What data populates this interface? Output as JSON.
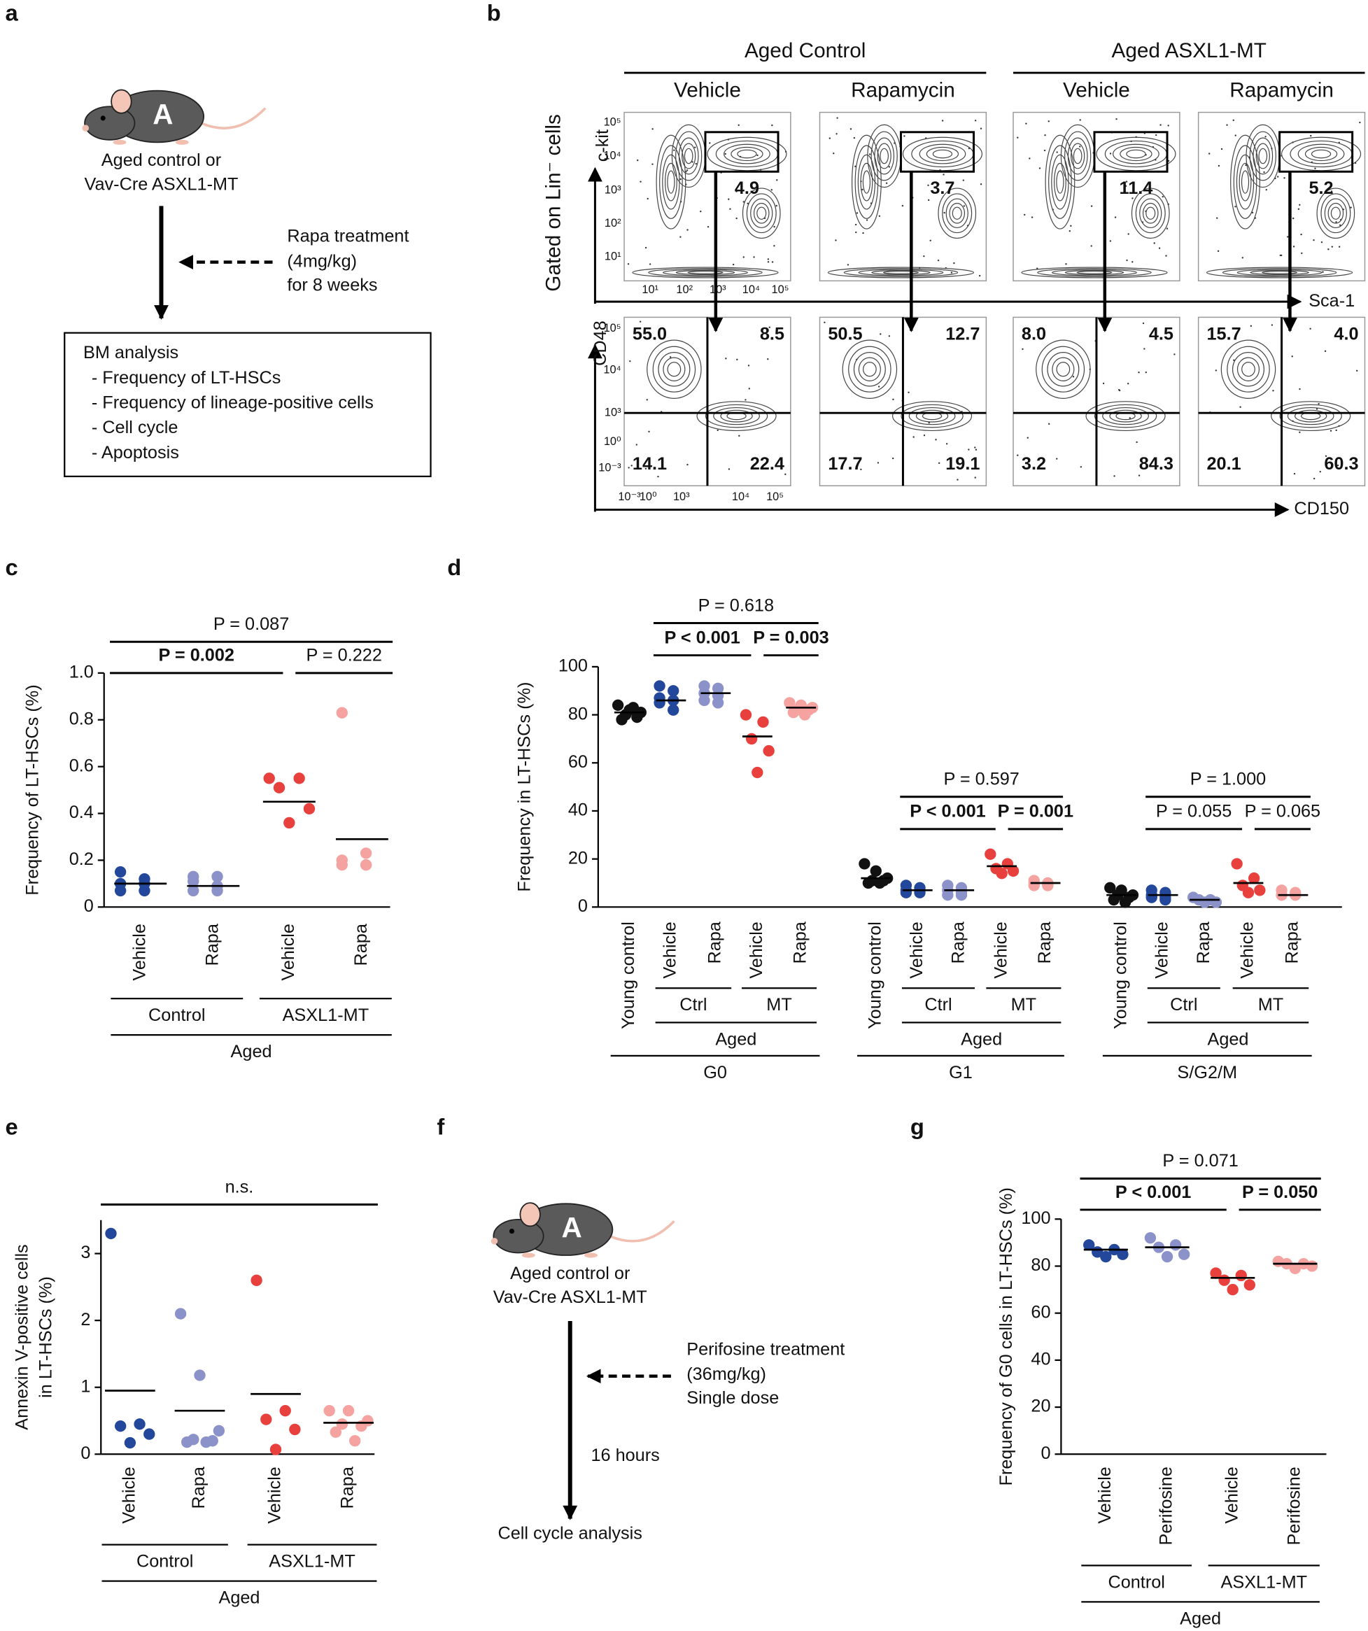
{
  "panel_labels": [
    "a",
    "b",
    "c",
    "d",
    "e",
    "f",
    "g"
  ],
  "panel_a": {
    "mouse_letter": "A",
    "subject": [
      "Aged control or",
      "Vav-Cre ASXL1-MT"
    ],
    "treatment": [
      "Rapa treatment",
      "(4mg/kg)",
      "for 8 weeks"
    ],
    "analysis": [
      "BM analysis",
      "- Frequency of LT-HSCs",
      "- Frequency of lineage-positive cells",
      "- Cell cycle",
      "- Apoptosis"
    ]
  },
  "panel_b": {
    "conditions": [
      {
        "label": "Aged Control",
        "treatments": [
          "Vehicle",
          "Rapamycin"
        ]
      },
      {
        "label": "Aged ASXL1-MT",
        "treatments": [
          "Vehicle",
          "Rapamycin"
        ]
      }
    ],
    "gate_label": "Gated on Lin⁻ cells",
    "top_y_axis": "c-kit",
    "top_x_axis": "Sca-1",
    "bottom_y_axis": "CD48",
    "bottom_x_axis": "CD150",
    "top_yticks": [
      "10⁵",
      "10⁴",
      "10³",
      "10²",
      "10¹"
    ],
    "top_xticks": [
      "10¹",
      "10²",
      "10³",
      "10⁴",
      "10⁵"
    ],
    "bottom_yticks": [
      "10⁵",
      "10⁴",
      "10³",
      "10⁰",
      "10⁻³"
    ],
    "bottom_xticks": [
      "10⁻³",
      "10⁰",
      "10³",
      "10⁴",
      "10⁵"
    ],
    "gate_percent": [
      "4.9",
      "3.7",
      "11.4",
      "5.2"
    ],
    "quadrants": [
      [
        "55.0",
        "8.5",
        "14.1",
        "22.4"
      ],
      [
        "50.5",
        "12.7",
        "17.7",
        "19.1"
      ],
      [
        "8.0",
        "4.5",
        "3.2",
        "84.3"
      ],
      [
        "15.7",
        "4.0",
        "20.1",
        "60.3"
      ]
    ]
  },
  "panel_f": {
    "mouse_letter": "A",
    "subject": [
      "Aged control or",
      "Vav-Cre ASXL1-MT"
    ],
    "treatment": [
      "Perifosine treatment",
      "(36mg/kg)",
      "Single dose"
    ],
    "interval": "16 hours",
    "endpoint": "Cell cycle analysis"
  },
  "chart_data": [
    {
      "type": "strip",
      "ylabel": "Frequency of LT-HSCs (%)",
      "categories": [
        "Vehicle",
        "Rapa",
        "Vehicle",
        "Rapa"
      ],
      "colors": [
        "#23479b",
        "#8b92c9",
        "#e8403c",
        "#f4a3a0"
      ],
      "subgroups": [
        {
          "label": "Control",
          "span": [
            0,
            1
          ]
        },
        {
          "label": "ASXL1-MT",
          "span": [
            2,
            3
          ]
        }
      ],
      "group": {
        "label": "Aged",
        "span": [
          0,
          3
        ]
      },
      "ylim": [
        0,
        1
      ],
      "yticks": [
        0,
        0.2,
        0.4,
        0.6,
        0.8,
        {
          "value": 1,
          "label": "1.0"
        }
      ],
      "panels": [
        {
          "points": [
            [
              0.15,
              0.12,
              0.1,
              0.1,
              0.07,
              0.07
            ],
            [
              0.13,
              0.13,
              0.11,
              0.09,
              0.07,
              0.07
            ],
            [
              0.55,
              0.55,
              0.51,
              0.42,
              0.36
            ],
            [
              0.83,
              0.23,
              0.2,
              0.18,
              0.18,
              0.18
            ]
          ],
          "means": [
            0.1,
            0.09,
            0.45,
            0.29
          ],
          "stats": [
            {
              "text": "P = 0.087",
              "span": [
                0,
                3
              ],
              "bold": false
            },
            {
              "text": "P = 0.002",
              "span": [
                0,
                2
              ],
              "bold": true
            },
            {
              "text": "P = 0.222",
              "span": [
                2,
                3
              ],
              "bold": false
            }
          ]
        }
      ]
    },
    {
      "type": "strip",
      "ylabel": "Frequency in LT-HSCs (%)",
      "categories": [
        "Young control",
        "Vehicle",
        "Rapa",
        "Vehicle",
        "Rapa"
      ],
      "colors": [
        "#111111",
        "#23479b",
        "#8b92c9",
        "#e8403c",
        "#f4a3a0"
      ],
      "subgroups": [
        {
          "label": "Ctrl",
          "span": [
            1,
            2
          ]
        },
        {
          "label": "MT",
          "span": [
            3,
            4
          ]
        }
      ],
      "group": {
        "label": "Aged",
        "span": [
          1,
          4
        ]
      },
      "ylim": [
        0,
        100
      ],
      "yticks": [
        0,
        20,
        40,
        60,
        80,
        100
      ],
      "panels": [
        {
          "label": "G0",
          "points": [
            [
              84,
              82,
              81,
              80,
              79,
              78,
              83
            ],
            [
              92,
              90,
              87,
              86,
              85,
              82
            ],
            [
              92,
              91,
              89,
              88,
              86,
              85
            ],
            [
              80,
              77,
              70,
              65,
              56
            ],
            [
              85,
              84,
              83,
              82,
              82,
              81,
              80
            ]
          ],
          "means": [
            81,
            86,
            89,
            71,
            83
          ],
          "stats": [
            {
              "text": "P = 0.618",
              "span": [
                1,
                4
              ],
              "bold": false
            },
            {
              "text": "P < 0.001",
              "span": [
                1,
                3
              ],
              "bold": true
            },
            {
              "text": "P = 0.003",
              "span": [
                3,
                4
              ],
              "bold": true
            }
          ]
        },
        {
          "label": "G1",
          "points": [
            [
              18,
              15,
              12,
              11,
              11,
              10,
              10
            ],
            [
              9,
              8,
              7,
              7,
              6,
              6
            ],
            [
              9,
              8,
              7,
              6,
              5,
              5
            ],
            [
              22,
              18,
              16,
              15,
              14
            ],
            [
              11,
              10,
              10,
              9,
              9,
              9
            ]
          ],
          "means": [
            12,
            7,
            7,
            17,
            10
          ],
          "stats": [
            {
              "text": "P = 0.597",
              "span": [
                1,
                4
              ],
              "bold": false
            },
            {
              "text": "P < 0.001",
              "span": [
                1,
                3
              ],
              "bold": true
            },
            {
              "text": "P = 0.001",
              "span": [
                3,
                4
              ],
              "bold": true
            }
          ]
        },
        {
          "label": "S/G2/M",
          "points": [
            [
              8,
              7,
              5,
              5,
              4,
              3,
              2
            ],
            [
              7,
              6,
              5,
              4,
              4,
              3
            ],
            [
              4,
              3,
              3,
              2,
              2
            ],
            [
              18,
              12,
              9,
              7,
              6
            ],
            [
              7,
              6,
              5,
              5,
              5,
              5
            ]
          ],
          "means": [
            5,
            5,
            3,
            10,
            5
          ],
          "stats": [
            {
              "text": "P = 1.000",
              "span": [
                1,
                4
              ],
              "bold": false
            },
            {
              "text": "P = 0.055",
              "span": [
                1,
                3
              ],
              "bold": false
            },
            {
              "text": "P = 0.065",
              "span": [
                3,
                4
              ],
              "bold": false
            }
          ]
        }
      ]
    },
    {
      "type": "strip",
      "ylabel": [
        "Annexin V-positive cells",
        "in LT-HSCs (%)"
      ],
      "categories": [
        "Vehicle",
        "Rapa",
        "Vehicle",
        "Rapa"
      ],
      "colors": [
        "#23479b",
        "#8b92c9",
        "#e8403c",
        "#f4a3a0"
      ],
      "subgroups": [
        {
          "label": "Control",
          "span": [
            0,
            1
          ]
        },
        {
          "label": "ASXL1-MT",
          "span": [
            2,
            3
          ]
        }
      ],
      "group": {
        "label": "Aged",
        "span": [
          0,
          3
        ]
      },
      "ylim": [
        0,
        3.5
      ],
      "yticks": [
        0,
        1,
        2,
        3
      ],
      "panels": [
        {
          "points": [
            [
              3.3,
              0.45,
              0.42,
              0.3,
              0.17
            ],
            [
              2.1,
              1.18,
              0.35,
              0.22,
              0.2,
              0.18,
              0.18
            ],
            [
              2.6,
              0.65,
              0.52,
              0.37,
              0.07
            ],
            [
              0.65,
              0.65,
              0.5,
              0.45,
              0.42,
              0.33,
              0.2
            ]
          ],
          "means": [
            0.95,
            0.65,
            0.9,
            0.47
          ],
          "stats": [
            {
              "text": "n.s.",
              "span": [
                0,
                3
              ],
              "bold": false
            }
          ]
        }
      ]
    },
    {
      "type": "strip",
      "ylabel": "Frequency of G0 cells in LT-HSCs (%)",
      "categories": [
        "Vehicle",
        "Perifosine",
        "Vehicle",
        "Perifosine"
      ],
      "colors": [
        "#23479b",
        "#8b92c9",
        "#e8403c",
        "#f4a3a0"
      ],
      "subgroups": [
        {
          "label": "Control",
          "span": [
            0,
            1
          ]
        },
        {
          "label": "ASXL1-MT",
          "span": [
            2,
            3
          ]
        }
      ],
      "group": {
        "label": "Aged",
        "span": [
          0,
          3
        ]
      },
      "ylim": [
        0,
        100
      ],
      "yticks": [
        0,
        20,
        40,
        60,
        80,
        100
      ],
      "panels": [
        {
          "points": [
            [
              89,
              87,
              86,
              85,
              84
            ],
            [
              92,
              89,
              88,
              85,
              84
            ],
            [
              77,
              76,
              74,
              72,
              70
            ],
            [
              82,
              81,
              81,
              80,
              79
            ]
          ],
          "means": [
            87,
            88,
            75,
            81
          ],
          "stats": [
            {
              "text": "P = 0.071",
              "span": [
                0,
                3
              ],
              "bold": false
            },
            {
              "text": "P < 0.001",
              "span": [
                0,
                2
              ],
              "bold": true
            },
            {
              "text": "P = 0.050",
              "span": [
                2,
                3
              ],
              "bold": true
            }
          ]
        }
      ]
    }
  ]
}
